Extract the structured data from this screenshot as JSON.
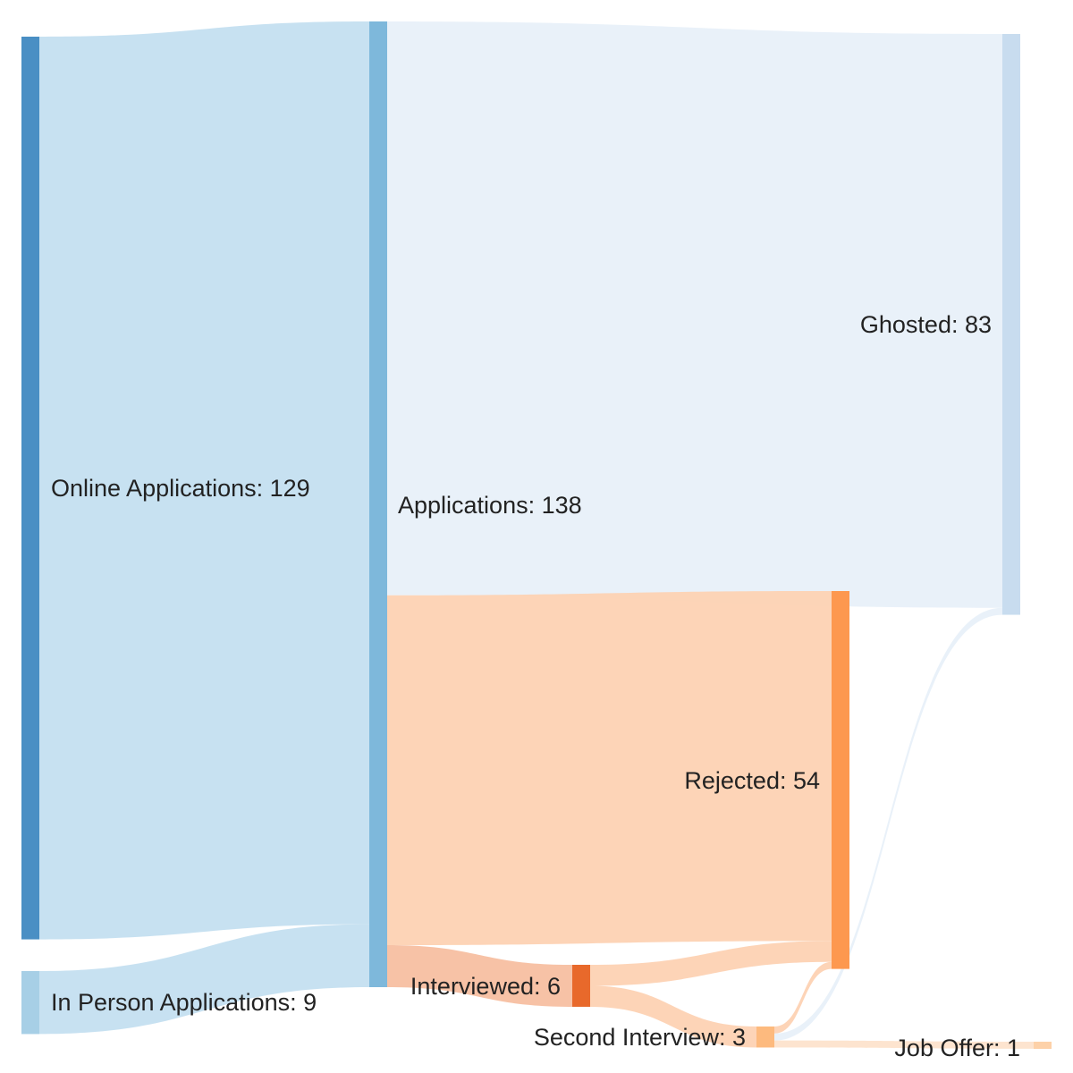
{
  "chart_data": {
    "type": "sankey",
    "title": "",
    "nodes": [
      {
        "id": "online",
        "label": "Online Applications: 129",
        "value": 129,
        "color": "#4a8fc4"
      },
      {
        "id": "inperson",
        "label": "In Person Applications: 9",
        "value": 9,
        "color": "#a7cfe6"
      },
      {
        "id": "apps",
        "label": "Applications: 138",
        "value": 138,
        "color": "#7eb8db"
      },
      {
        "id": "ghosted",
        "label": "Ghosted: 83",
        "value": 83,
        "color": "#c8dcef"
      },
      {
        "id": "rejected",
        "label": "Rejected: 54",
        "value": 54,
        "color": "#fd984f"
      },
      {
        "id": "interview",
        "label": "Interviewed: 6",
        "value": 6,
        "color": "#e8692b"
      },
      {
        "id": "second",
        "label": "Second Interview: 3",
        "value": 3,
        "color": "#fdba7e"
      },
      {
        "id": "offer",
        "label": "Job Offer: 1",
        "value": 1,
        "color": "#fdd1a8"
      }
    ],
    "links": [
      {
        "source": "online",
        "target": "apps",
        "value": 129,
        "color": "#c4dff0"
      },
      {
        "source": "inperson",
        "target": "apps",
        "value": 9,
        "color": "#c4dff0"
      },
      {
        "source": "apps",
        "target": "ghosted",
        "value": 82,
        "color": "#e8f0f9"
      },
      {
        "source": "apps",
        "target": "rejected",
        "value": 50,
        "color": "#fdd2b3"
      },
      {
        "source": "apps",
        "target": "interview",
        "value": 6,
        "color": "#f7bfa1"
      },
      {
        "source": "interview",
        "target": "rejected",
        "value": 3,
        "color": "#fdd2b3"
      },
      {
        "source": "interview",
        "target": "second",
        "value": 3,
        "color": "#fdd2b3"
      },
      {
        "source": "second",
        "target": "rejected",
        "value": 1,
        "color": "#fdd2b3"
      },
      {
        "source": "second",
        "target": "ghosted",
        "value": 1,
        "color": "#e8f0f9"
      },
      {
        "source": "second",
        "target": "offer",
        "value": 1,
        "color": "#fde3cc"
      }
    ]
  }
}
